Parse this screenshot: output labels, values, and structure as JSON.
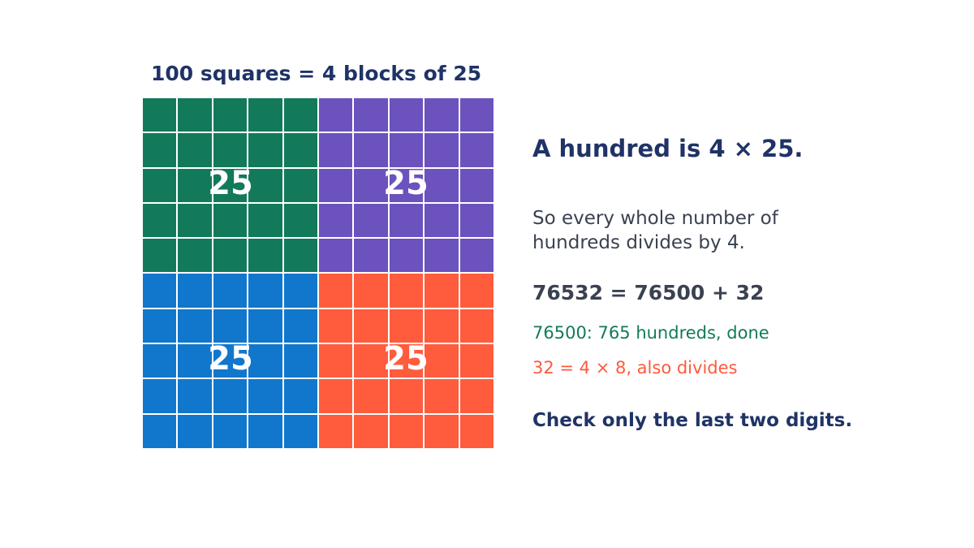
{
  "grid": {
    "title": "100 squares = 4 blocks of 25",
    "rows": 10,
    "cols": 10,
    "blocks": [
      {
        "name": "top-left",
        "label": "25",
        "color": "#127a5a"
      },
      {
        "name": "top-right",
        "label": "25",
        "color": "#6c52bd"
      },
      {
        "name": "bottom-left",
        "label": "25",
        "color": "#1177cc"
      },
      {
        "name": "bottom-right",
        "label": "25",
        "color": "#ff5c3e"
      }
    ]
  },
  "explanation": {
    "headline": "A hundred is 4 × 25.",
    "paragraph_line1": "So every whole number of",
    "paragraph_line2": "hundreds divides by 4.",
    "equation": "76532 = 76500 + 32",
    "hundreds_part": "76500: 765 hundreds, done",
    "remainder_part": "32 = 4 × 8, also divides",
    "conclusion": "Check only the last two digits."
  }
}
